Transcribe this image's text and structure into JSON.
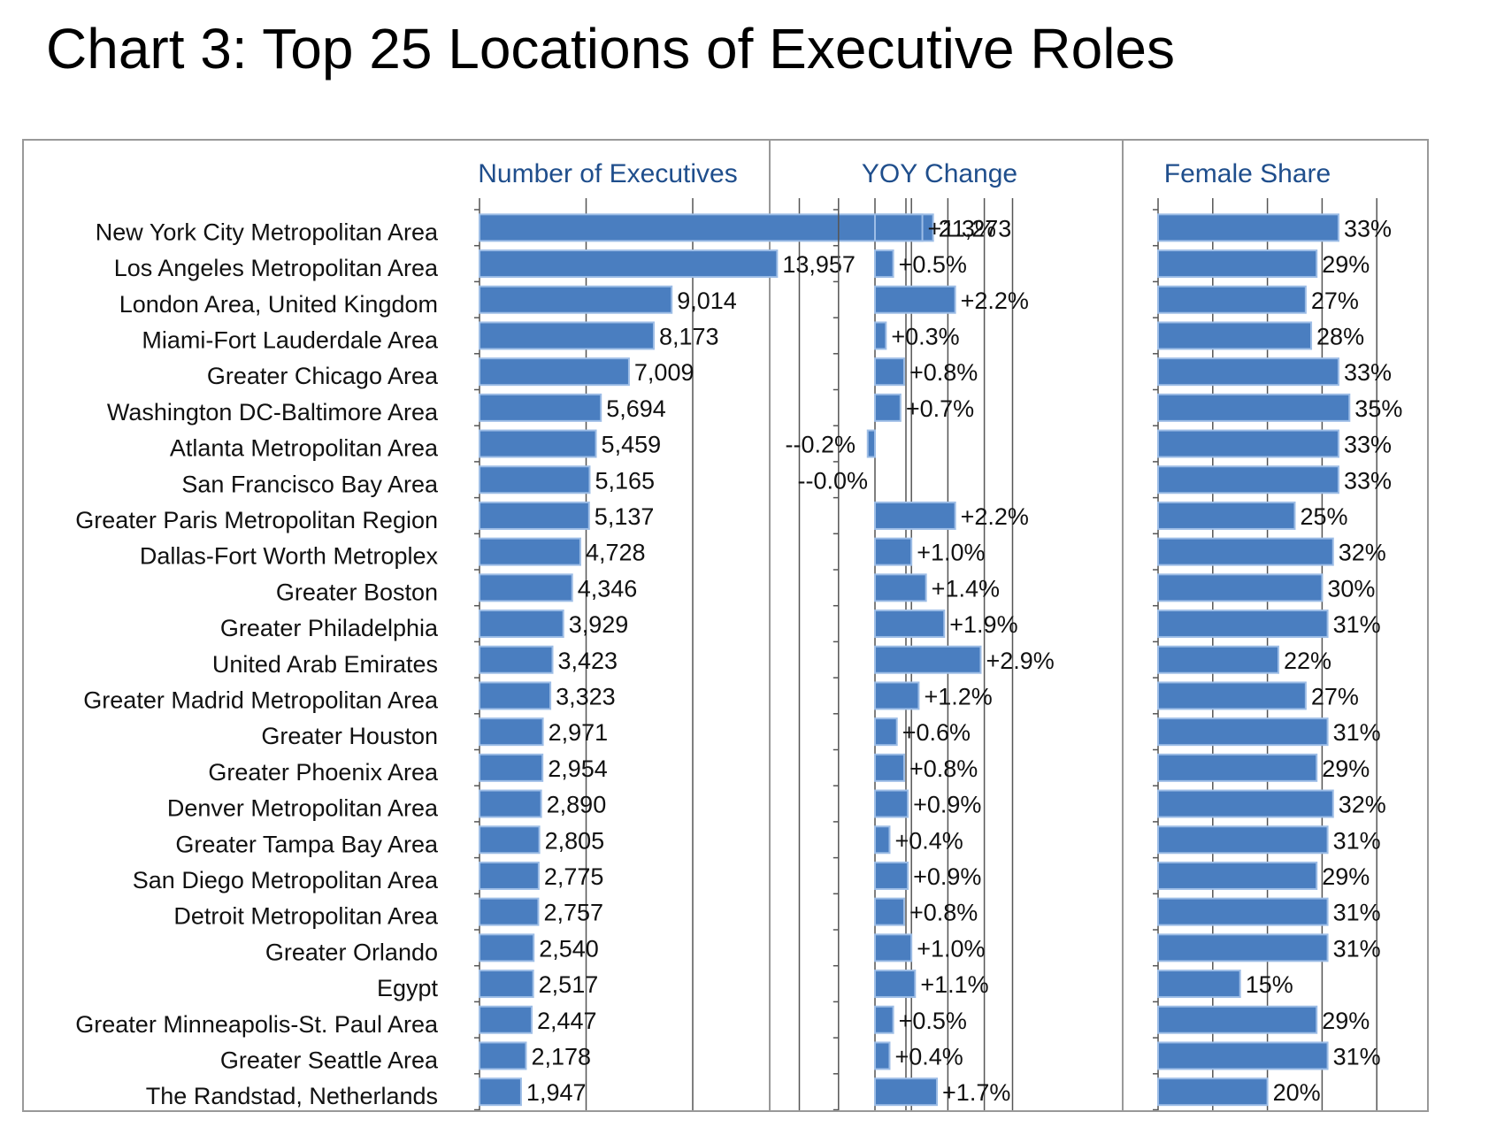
{
  "title": "Chart 3: Top 25 Locations of Executive Roles",
  "colors": {
    "bar": "#4a7ec0",
    "bar_stroke": "#9dbde6",
    "grid": "#555555",
    "header": "#1f4e8c",
    "frame": "#999999"
  },
  "chart_data": [
    {
      "type": "bar",
      "orientation": "horizontal",
      "header": "Number of Executives",
      "categories": [
        "New York City Metropolitan Area",
        "Los Angeles Metropolitan Area",
        "London Area, United Kingdom",
        "Miami-Fort Lauderdale Area",
        "Greater Chicago Area",
        "Washington DC-Baltimore Area",
        "Atlanta Metropolitan Area",
        "San Francisco Bay Area",
        "Greater Paris Metropolitan Region",
        "Dallas-Fort Worth Metroplex",
        "Greater Boston",
        "Greater Philadelphia",
        "United Arab Emirates",
        "Greater Madrid Metropolitan Area",
        "Greater Houston",
        "Greater Phoenix Area",
        "Denver Metropolitan Area",
        "Greater Tampa Bay Area",
        "San Diego Metropolitan Area",
        "Detroit Metropolitan Area",
        "Greater Orlando",
        "Egypt",
        "Greater Minneapolis-St. Paul Area",
        "Greater Seattle Area",
        "The Randstad, Netherlands"
      ],
      "values": [
        21273,
        13957,
        9014,
        8173,
        7009,
        5694,
        5459,
        5165,
        5137,
        4728,
        4346,
        3929,
        3423,
        3323,
        2971,
        2954,
        2890,
        2805,
        2775,
        2757,
        2540,
        2517,
        2447,
        2178,
        1947
      ],
      "labels": [
        "21,273",
        "13,957",
        "9,014",
        "8,173",
        "7,009",
        "5,694",
        "5,459",
        "5,165",
        "5,137",
        "4,728",
        "4,346",
        "3,929",
        "3,423",
        "3,323",
        "2,971",
        "2,954",
        "2,890",
        "2,805",
        "2,775",
        "2,757",
        "2,540",
        "2,517",
        "2,447",
        "2,178",
        "1,947"
      ],
      "xlim": [
        0,
        25000
      ],
      "grid": true
    },
    {
      "type": "bar",
      "orientation": "horizontal",
      "header": "YOY Change",
      "values": [
        1.3,
        0.5,
        2.2,
        0.3,
        0.8,
        0.7,
        -0.2,
        0.0,
        2.2,
        1.0,
        1.4,
        1.9,
        2.9,
        1.2,
        0.6,
        0.8,
        0.9,
        0.4,
        0.9,
        0.8,
        1.0,
        1.1,
        0.5,
        0.4,
        1.7
      ],
      "labels": [
        "+1.3%",
        "+0.5%",
        "+2.2%",
        "+0.3%",
        "+0.8%",
        "+0.7%",
        "--0.2%",
        "--0.0%",
        "+2.2%",
        "+1.0%",
        "+1.4%",
        "+1.9%",
        "+2.9%",
        "+1.2%",
        "+0.6%",
        "+0.8%",
        "+0.9%",
        "+0.4%",
        "+0.9%",
        "+0.8%",
        "+1.0%",
        "+1.1%",
        "+0.5%",
        "+0.4%",
        "+1.7%"
      ],
      "xlim": [
        -1,
        3
      ],
      "grid": true
    },
    {
      "type": "bar",
      "orientation": "horizontal",
      "header": "Female Share",
      "values": [
        33,
        29,
        27,
        28,
        33,
        35,
        33,
        33,
        25,
        32,
        30,
        31,
        22,
        27,
        31,
        29,
        32,
        31,
        29,
        31,
        31,
        15,
        29,
        31,
        20
      ],
      "labels": [
        "33%",
        "29%",
        "27%",
        "28%",
        "33%",
        "35%",
        "33%",
        "33%",
        "25%",
        "32%",
        "30%",
        "31%",
        "22%",
        "27%",
        "31%",
        "29%",
        "32%",
        "31%",
        "29%",
        "31%",
        "31%",
        "15%",
        "29%",
        "31%",
        "20%"
      ],
      "xlim": [
        0,
        40
      ],
      "grid": true
    }
  ]
}
